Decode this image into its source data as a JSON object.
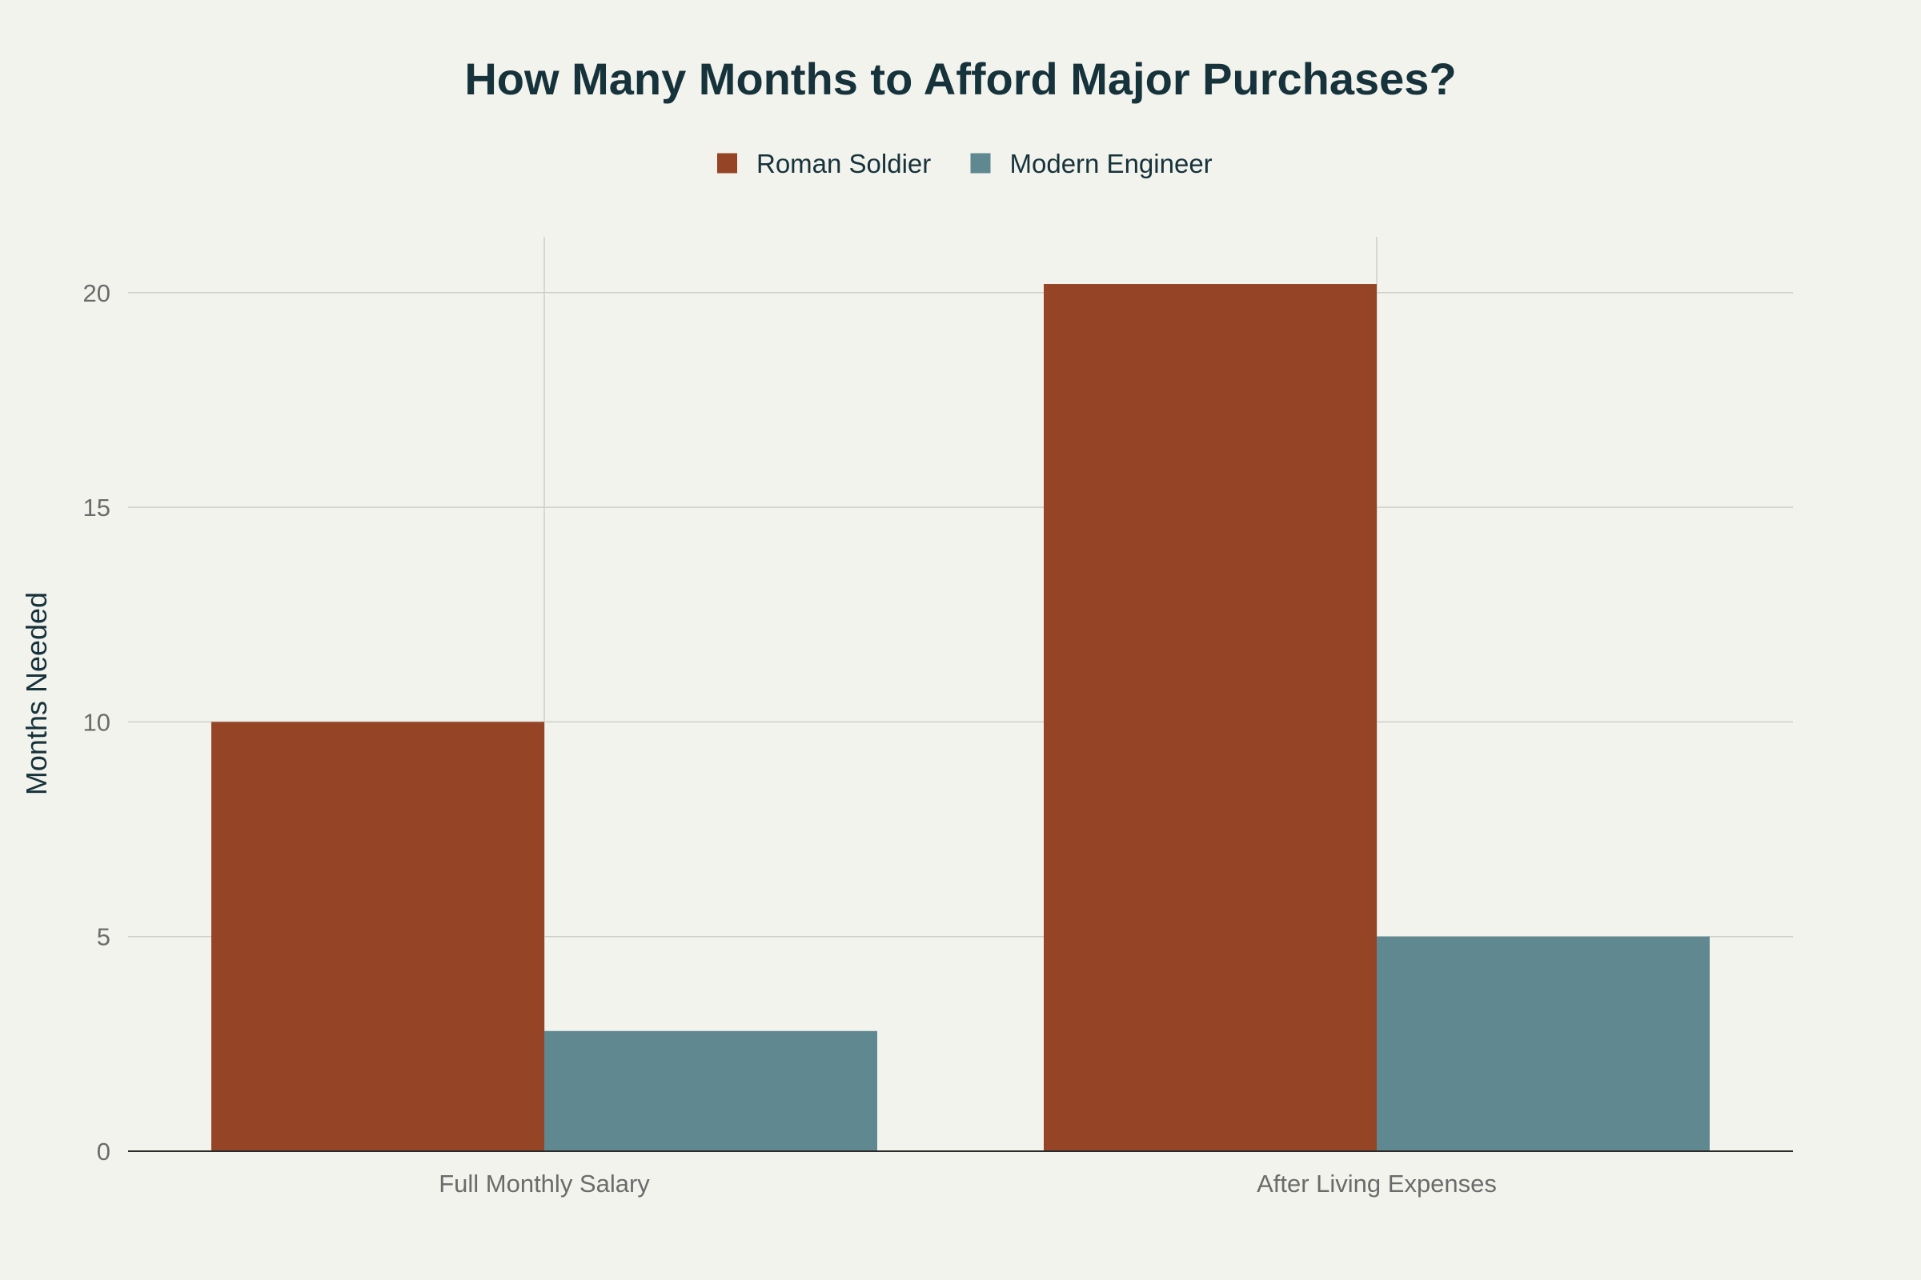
{
  "chart_data": {
    "type": "bar",
    "title": "How Many Months to Afford Major Purchases?",
    "xlabel": "",
    "ylabel": "Months Needed",
    "categories": [
      "Full Monthly Salary",
      "After Living Expenses"
    ],
    "series": [
      {
        "name": "Roman Soldier",
        "color": "#964426",
        "values": [
          10,
          20.2
        ]
      },
      {
        "name": "Modern Engineer",
        "color": "#5f8890",
        "values": [
          2.8,
          5
        ]
      }
    ],
    "ylim": [
      0,
      21.3
    ],
    "yticks": [
      0,
      5,
      10,
      15,
      20
    ],
    "grid": true,
    "legend_position": "top-center",
    "background": "#f3f3ee"
  }
}
